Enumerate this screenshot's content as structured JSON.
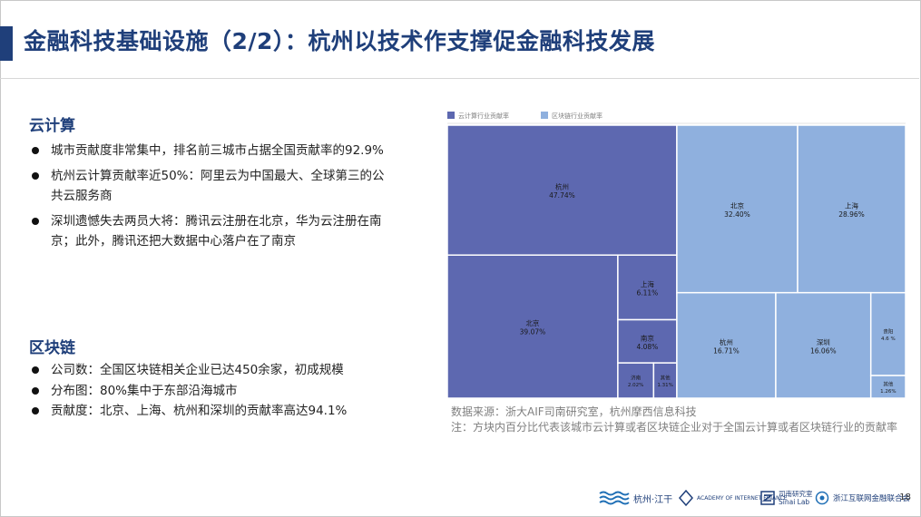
{
  "slide": {
    "title": "金融科技基础设施（2/2）：杭州以技术作支撑促金融科技发展",
    "page_number": "18"
  },
  "cloud": {
    "heading": "云计算",
    "bullets": [
      "城市贡献度非常集中，排名前三城市占据全国贡献率的92.9%",
      "杭州云计算贡献率近50%：阿里云为中国最大、全球第三的公共云服务商",
      "深圳遗憾失去两员大将：腾讯云注册在北京，华为云注册在南京；此外，腾讯还把大数据中心落户在了南京"
    ]
  },
  "blockchain": {
    "heading": "区块链",
    "bullets": [
      "公司数：全国区块链相关企业已达450余家，初成规模",
      "分布图：80%集中于东部沿海城市",
      "贡献度：北京、上海、杭州和深圳的贡献率高达94.1%"
    ]
  },
  "notes": {
    "source": "数据来源：浙大AIF司南研究室，杭州摩西信息科技",
    "note": "注：方块内百分比代表该城市云计算或者区块链企业对于全国云计算或者区块链行业的贡献率"
  },
  "footer": {
    "logos": [
      {
        "name": "hangzhou-jianggan-logo",
        "text": "杭州·江干"
      },
      {
        "name": "zju-aif-logo",
        "text": "ACADEMY OF INTERNET FINANCE"
      },
      {
        "name": "sinai-lab-logo",
        "text": "司南研究室 Sinai Lab"
      },
      {
        "name": "zhejiang-internet-finance-association-logo",
        "text": "浙江互联网金融联合会"
      }
    ]
  },
  "colors": {
    "cloud": "#5d68b0",
    "blockchain": "#8fb0de",
    "title": "#1f3f7a"
  },
  "chart_data": {
    "type": "treemap",
    "legend_position": "top-left",
    "series": [
      {
        "name": "云计算行业贡献率",
        "color": "#5d68b0",
        "items": [
          {
            "label": "杭州",
            "value": 47.74,
            "text": "47.74%"
          },
          {
            "label": "北京",
            "value": 39.07,
            "text": "39.07%"
          },
          {
            "label": "上海",
            "value": 6.11,
            "text": "6.11%"
          },
          {
            "label": "南京",
            "value": 4.08,
            "text": "4.08%"
          },
          {
            "label": "济南",
            "value": 2.02,
            "text": "2.02%"
          },
          {
            "label": "其他",
            "value": 1.31,
            "text": "1.31%"
          }
        ]
      },
      {
        "name": "区块链行业贡献率",
        "color": "#8fb0de",
        "items": [
          {
            "label": "北京",
            "value": 32.4,
            "text": "32.40%"
          },
          {
            "label": "上海",
            "value": 28.96,
            "text": "28.96%"
          },
          {
            "label": "杭州",
            "value": 16.71,
            "text": "16.71%"
          },
          {
            "label": "深圳",
            "value": 16.06,
            "text": "16.06%"
          },
          {
            "label": "贵阳",
            "value": 4.61,
            "text": "4.6 %"
          },
          {
            "label": "其他",
            "value": 1.26,
            "text": "1.26%"
          }
        ]
      }
    ]
  }
}
